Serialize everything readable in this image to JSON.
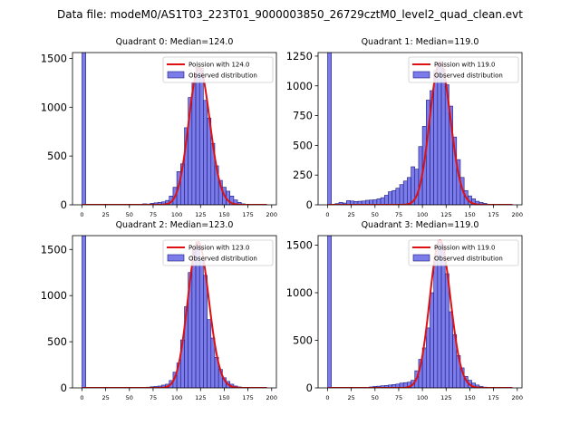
{
  "suptitle": "Data file: modeM0/AS1T03_223T01_9000003850_26729cztM0_level2_quad_clean.evt",
  "colors": {
    "bar_fill": "#7b7bea",
    "bar_edge": "#1a1a80",
    "curve": "#dd1111",
    "axis": "#000000"
  },
  "chart_data": [
    {
      "type": "bar",
      "title": "Quadrant 0: Median=124.0",
      "median": 124.0,
      "xlim": [
        -10,
        205
      ],
      "ylim": [
        0,
        1560
      ],
      "xticks": [
        0,
        25,
        50,
        75,
        100,
        125,
        150,
        175,
        200
      ],
      "yticks": [
        0,
        500,
        1000,
        1500
      ],
      "bin_width": 4,
      "bins": [
        [
          0,
          1560
        ],
        [
          64,
          10
        ],
        [
          68,
          8
        ],
        [
          72,
          15
        ],
        [
          76,
          20
        ],
        [
          80,
          25
        ],
        [
          84,
          30
        ],
        [
          88,
          45
        ],
        [
          92,
          90
        ],
        [
          96,
          180
        ],
        [
          100,
          340
        ],
        [
          104,
          420
        ],
        [
          108,
          790
        ],
        [
          112,
          1100
        ],
        [
          116,
          1250
        ],
        [
          120,
          1410
        ],
        [
          124,
          1400
        ],
        [
          128,
          1070
        ],
        [
          132,
          890
        ],
        [
          136,
          630
        ],
        [
          140,
          400
        ],
        [
          144,
          250
        ],
        [
          148,
          180
        ],
        [
          152,
          140
        ],
        [
          156,
          90
        ],
        [
          160,
          50
        ],
        [
          164,
          25
        ],
        [
          168,
          10
        ],
        [
          172,
          5
        ]
      ],
      "legend": [
        "Poission with 124.0",
        "Observed distribution"
      ]
    },
    {
      "type": "bar",
      "title": "Quadrant 1: Median=119.0",
      "median": 119.0,
      "xlim": [
        -10,
        205
      ],
      "ylim": [
        0,
        1280
      ],
      "xticks": [
        0,
        25,
        50,
        75,
        100,
        125,
        150,
        175,
        200
      ],
      "yticks": [
        0,
        250,
        500,
        750,
        1000,
        1250
      ],
      "bin_width": 4,
      "bins": [
        [
          0,
          1280
        ],
        [
          8,
          10
        ],
        [
          12,
          20
        ],
        [
          16,
          15
        ],
        [
          20,
          35
        ],
        [
          24,
          32
        ],
        [
          28,
          28
        ],
        [
          32,
          30
        ],
        [
          36,
          32
        ],
        [
          40,
          38
        ],
        [
          44,
          40
        ],
        [
          48,
          42
        ],
        [
          52,
          50
        ],
        [
          56,
          60
        ],
        [
          60,
          80
        ],
        [
          64,
          110
        ],
        [
          68,
          120
        ],
        [
          72,
          140
        ],
        [
          76,
          170
        ],
        [
          80,
          200
        ],
        [
          84,
          230
        ],
        [
          88,
          320
        ],
        [
          92,
          300
        ],
        [
          96,
          490
        ],
        [
          100,
          660
        ],
        [
          104,
          880
        ],
        [
          108,
          960
        ],
        [
          112,
          1130
        ],
        [
          116,
          1200
        ],
        [
          120,
          1140
        ],
        [
          124,
          1010
        ],
        [
          128,
          830
        ],
        [
          132,
          570
        ],
        [
          136,
          380
        ],
        [
          140,
          230
        ],
        [
          144,
          120
        ],
        [
          148,
          75
        ],
        [
          152,
          50
        ],
        [
          156,
          30
        ],
        [
          160,
          20
        ],
        [
          164,
          12
        ],
        [
          168,
          5
        ]
      ],
      "legend": [
        "Poission with 119.0",
        "Observed distribution"
      ]
    },
    {
      "type": "bar",
      "title": "Quadrant 2: Median=123.0",
      "median": 123.0,
      "xlim": [
        -10,
        205
      ],
      "ylim": [
        0,
        1650
      ],
      "xticks": [
        0,
        25,
        50,
        75,
        100,
        125,
        150,
        175,
        200
      ],
      "yticks": [
        0,
        500,
        1000,
        1500
      ],
      "bin_width": 4,
      "bins": [
        [
          0,
          1650
        ],
        [
          68,
          8
        ],
        [
          72,
          12
        ],
        [
          76,
          15
        ],
        [
          80,
          20
        ],
        [
          84,
          30
        ],
        [
          88,
          40
        ],
        [
          92,
          80
        ],
        [
          96,
          170
        ],
        [
          100,
          270
        ],
        [
          104,
          520
        ],
        [
          108,
          880
        ],
        [
          112,
          1250
        ],
        [
          116,
          1500
        ],
        [
          120,
          1580
        ],
        [
          124,
          1380
        ],
        [
          128,
          1220
        ],
        [
          132,
          740
        ],
        [
          136,
          540
        ],
        [
          140,
          330
        ],
        [
          144,
          200
        ],
        [
          148,
          110
        ],
        [
          152,
          70
        ],
        [
          156,
          40
        ],
        [
          160,
          20
        ],
        [
          164,
          10
        ],
        [
          168,
          5
        ]
      ],
      "legend": [
        "Poission with 123.0",
        "Observed distribution"
      ]
    },
    {
      "type": "bar",
      "title": "Quadrant 3: Median=119.0",
      "median": 119.0,
      "xlim": [
        -10,
        205
      ],
      "ylim": [
        0,
        1600
      ],
      "xticks": [
        0,
        25,
        50,
        75,
        100,
        125,
        150,
        175,
        200
      ],
      "yticks": [
        0,
        500,
        1000,
        1500
      ],
      "bin_width": 4,
      "bins": [
        [
          0,
          1600
        ],
        [
          44,
          10
        ],
        [
          48,
          15
        ],
        [
          52,
          18
        ],
        [
          56,
          22
        ],
        [
          60,
          25
        ],
        [
          64,
          30
        ],
        [
          68,
          35
        ],
        [
          72,
          40
        ],
        [
          76,
          50
        ],
        [
          80,
          55
        ],
        [
          84,
          60
        ],
        [
          88,
          80
        ],
        [
          92,
          180
        ],
        [
          96,
          300
        ],
        [
          100,
          420
        ],
        [
          104,
          630
        ],
        [
          108,
          1000
        ],
        [
          112,
          1380
        ],
        [
          116,
          1550
        ],
        [
          120,
          1480
        ],
        [
          124,
          1200
        ],
        [
          128,
          800
        ],
        [
          132,
          560
        ],
        [
          136,
          340
        ],
        [
          140,
          210
        ],
        [
          144,
          120
        ],
        [
          148,
          80
        ],
        [
          152,
          50
        ],
        [
          156,
          30
        ],
        [
          160,
          15
        ],
        [
          164,
          8
        ]
      ],
      "legend": [
        "Poission with 119.0",
        "Observed distribution"
      ]
    }
  ]
}
